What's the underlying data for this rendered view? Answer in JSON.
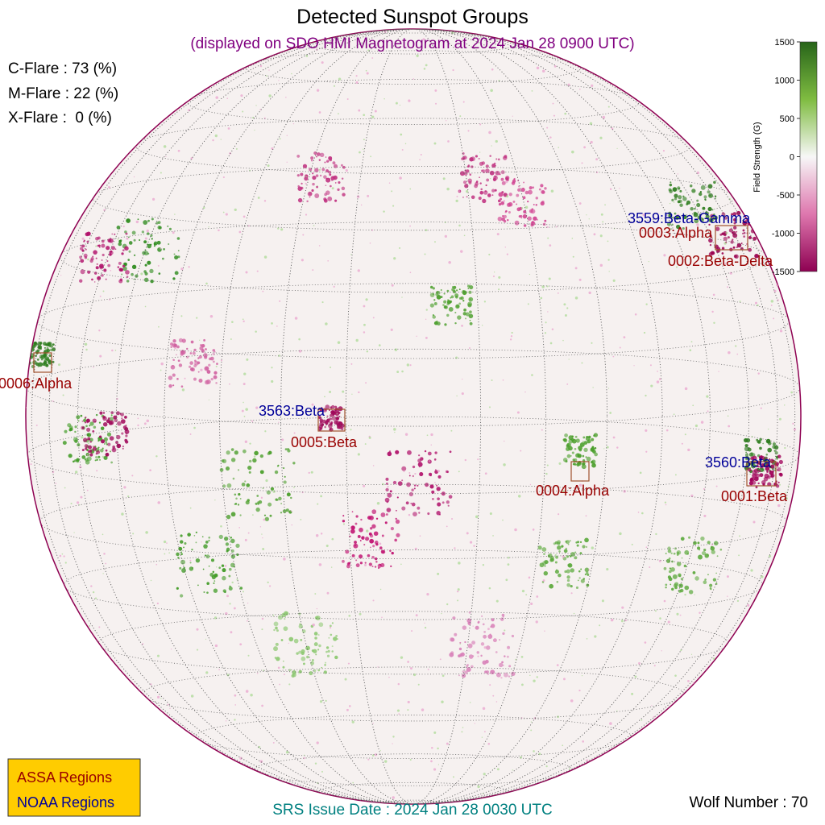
{
  "header": {
    "title": "Detected Sunspot Groups",
    "subtitle": "(displayed on SDO HMI Magnetogram at 2024 Jan 28 0900 UTC)"
  },
  "flare_probabilities": [
    "C-Flare : 73 (%)",
    "M-Flare : 22 (%)",
    "X-Flare :  0 (%)"
  ],
  "regions": [
    "3559:Beta-Gamma",
    "0003:Alpha",
    "0002:Beta-Delta",
    "0006:Alpha",
    "3563:Beta",
    "0005:Beta",
    "0004:Alpha",
    "3560:Beta",
    "0001:Beta"
  ],
  "legend": [
    "ASSA Regions",
    "NOAA Regions"
  ],
  "colorbar": {
    "label": "Field Strength (G)",
    "lim": [
      -1500,
      1500
    ],
    "ticks": [
      1500,
      1000,
      500,
      0,
      -500,
      -1000,
      -1500
    ]
  },
  "footer": {
    "srs_issue_date": "SRS Issue Date : 2024 Jan 28 0030 UTC",
    "wolf_number": "Wolf Number : 70"
  }
}
